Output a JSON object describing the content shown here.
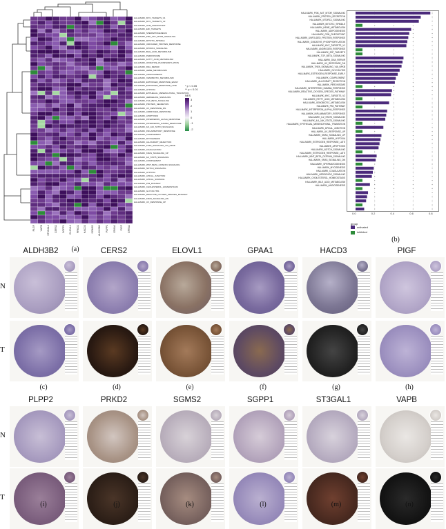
{
  "panel_labels": {
    "a": "(a)",
    "b": "(b)",
    "c": "(c)",
    "d": "(d)",
    "e": "(e)",
    "f": "(f)",
    "g": "(g)",
    "h": "(h)",
    "i": "(i)",
    "j": "(j)",
    "k": "(k)",
    "l": "(l)",
    "m": "(m)",
    "n": "(n)"
  },
  "heatmap": {
    "legend": {
      "p_low": "* p < 0.05",
      "p_high": "** p < 0.01",
      "title": "NES",
      "ticks": [
        "3",
        "2",
        "1",
        "0",
        "-1",
        "-2"
      ]
    },
    "columns": [
      "PLGF",
      "VAPB",
      "ST3GAL1",
      "CERS2",
      "SGPP1",
      "ELOVL1",
      "PRKD2",
      "HACD3",
      "SGMS2",
      "ALDH3B2",
      "PLPP2",
      "GPAA1",
      "PIGF",
      "GFRA1"
    ],
    "rows": [
      "HALLMARK_MYC_TARGETS_V1",
      "HALLMARK_MYC_TARGETS_V2",
      "HALLMARK_G2M_CHECKPOINT",
      "HALLMARK_E2F_TARGETS",
      "HALLMARK_SPERMATOGENESIS",
      "HALLMARK_PI3K_AKT_MTOR_SIGNALING",
      "HALLMARK_MITOTIC_SPINDLE",
      "HALLMARK_UNFOLDED_PROTEIN_RESPONSE",
      "HALLMARK_MTORC1_SIGNALING",
      "HALLMARK_BILE_ACID_METABOLISM",
      "HALLMARK_PEROXISOME",
      "HALLMARK_FATTY_ACID_METABOLISM",
      "HALLMARK_OXIDATIVE_PHOSPHORYLATION",
      "HALLMARK_DNA_REPAIR",
      "HALLMARK_HEME_METABOLISM",
      "HALLMARK_ANGIOGENESIS",
      "HALLMARK_XENOBIOTIC_METABOLISM",
      "HALLMARK_ESTROGEN_RESPONSE_EARLY",
      "HALLMARK_ESTROGEN_RESPONSE_LATE",
      "HALLMARK_HYPOXIA",
      "HALLMARK_EPITHELIAL_MESENCHYMAL_TRANSITION",
      "HALLMARK_HEDGEHOG_SIGNALING",
      "HALLMARK_TGF_BETA_SIGNALING",
      "HALLMARK_PROTEIN_SECRETION",
      "HALLMARK_UV_RESPONSE_DN",
      "HALLMARK_ANDROGEN_RESPONSE",
      "HALLMARK_APOPTOSIS",
      "HALLMARK_INTERFERON_ALPHA_RESPONSE",
      "HALLMARK_INTERFERON_GAMMA_RESPONSE",
      "HALLMARK_IL6_JAK_STAT3_SIGNALING",
      "HALLMARK_INFLAMMATORY_RESPONSE",
      "HALLMARK_COMPLEMENT",
      "HALLMARK_MYOGENESIS",
      "HALLMARK_ALLOGRAFT_REJECTION",
      "HALLMARK_TNFA_SIGNALING_VIA_NFKB",
      "HALLMARK_COAGULATION",
      "HALLMARK_KRAS_SIGNALING_UP",
      "HALLMARK_IL2_STAT5_SIGNALING",
      "HALLMARK_COMPLEMENT",
      "HALLMARK_WNT_BETA_CATENIN_SIGNALING",
      "HALLMARK_NOTCH_SIGNALING",
      "HALLMARK_HYPOXIA",
      "HALLMARK_APICAL_JUNCTION",
      "HALLMARK_APICAL_SURFACE",
      "HALLMARK_P53_PATHWAY",
      "HALLMARK_CHOLESTEROL_HOMEOSTASIS",
      "HALLMARK_GLYCOLYSIS",
      "HALLMARK_REACTIVE_OXYGEN_SPECIES_PATHWAY",
      "HALLMARK_KRAS_SIGNALING_DN",
      "HALLMARK_UV_RESPONSE_UP"
    ]
  },
  "barplot": {
    "axis_ticks": [
      "0.0",
      "0.2",
      "0.4",
      "0.6",
      "0.8"
    ],
    "legend": {
      "title": "group",
      "activated": "activated",
      "inhibited": "inhibited"
    },
    "colors": {
      "activated": "#4b2a7b",
      "inhibited": "#2e8b3a"
    },
    "rows": [
      "HALLMARK_PI3K_AKT_MTOR_SIGNALING",
      "HALLMARK_PROTEIN_SECRETION",
      "HALLMARK_MTORC1_SIGNALING",
      "HALLMARK_MITOTIC_SPINDLE",
      "HALLMARK_HEME_METABOLISM",
      "HALLMARK_ADIPOGENESIS",
      "HALLMARK_G2M_CHECKPOINT",
      "HALLMARK_UNFOLDED_PROTEIN_RESPONSE",
      "HALLMARK_OXIDATIVE_PHOSPHORYLATION",
      "HALLMARK_MYC_TARGETS_V1",
      "HALLMARK_ANDROGEN_RESPONSE",
      "HALLMARK_E2F_TARGETS",
      "HALLMARK_TGF_BETA_SIGNALING",
      "HALLMARK_DNA_REPAIR",
      "HALLMARK_UV_RESPONSE_DN",
      "HALLMARK_TNFA_SIGNALING_VIA_NFKB",
      "HALLMARK_GLYCOLYSIS",
      "HALLMARK_ESTROGEN_RESPONSE_EARLY",
      "HALLMARK_COMPLEMENT",
      "HALLMARK_ALLOGRAFT_REJECTION",
      "HALLMARK_PEROXISOME",
      "HALLMARK_INTERFERON_GAMMA_RESPONSE",
      "HALLMARK_REACTIVE_OXYGEN_SPECIES_PATHWAY",
      "HALLMARK_MYC_TARGETS_V2",
      "HALLMARK_FATTY_ACID_METABOLISM",
      "HALLMARK_XENOBIOTIC_METABOLISM",
      "HALLMARK_P53_PATHWAY",
      "HALLMARK_INTERFERON_ALPHA_RESPONSE",
      "HALLMARK_INFLAMMATORY_RESPONSE",
      "HALLMARK_IL2_STAT5_SIGNALING",
      "HALLMARK_IL6_JAK_STAT3_SIGNALING",
      "HALLMARK_EPITHELIAL_MESENCHYMAL_TRANSITION",
      "HALLMARK_APICAL_JUNCTION",
      "HALLMARK_UV_RESPONSE_UP",
      "HALLMARK_KRAS_SIGNALING_UP",
      "HALLMARK_HYPOXIA",
      "HALLMARK_ESTROGEN_RESPONSE_LATE",
      "HALLMARK_APOPTOSIS",
      "HALLMARK_NOTCH_SIGNALING",
      "HALLMARK_ESTROGEN_RESPONSE_LATE",
      "HALLMARK_WNT_BETA_CATENIN_SIGNALING",
      "HALLMARK_KRAS_SIGNALING_DN",
      "HALLMARK_SPERMATOGENESIS",
      "HALLMARK_MYOGENESIS",
      "HALLMARK_COAGULATION",
      "HALLMARK_HEDGEHOG_SIGNALING",
      "HALLMARK_CHOLESTEROL_HOMEOSTASIS",
      "HALLMARK_BILE_ACID_METABOLISM",
      "HALLMARK_ANGIOGENESIS"
    ],
    "values": [
      0.78,
      0.68,
      0.66,
      0.62,
      0.58,
      0.56,
      0.55,
      0.54,
      0.53,
      0.52,
      0.52,
      0.5,
      0.49,
      0.48,
      0.46,
      0.44,
      0.42,
      0.41,
      0.4,
      0.38,
      0.37,
      0.36,
      0.35,
      0.34,
      0.33,
      0.32,
      0.31,
      0.3,
      0.29,
      0.28,
      0.27,
      0.26,
      0.25,
      0.24,
      0.23,
      0.22,
      0.21,
      0.2,
      0.19,
      0.18,
      0.17,
      0.16,
      0.15,
      0.14,
      0.13,
      0.12,
      0.11,
      0.1,
      0.09
    ]
  },
  "ihc": {
    "row_tags": {
      "normal": "N",
      "tumor": "T"
    },
    "genes": [
      "ALDH3B2",
      "CERS2",
      "ELOVL1",
      "GPAA1",
      "HACD3",
      "PIGF",
      "PLPP2",
      "PRKD2",
      "SGMS2",
      "SGPP1",
      "ST3GAL1",
      "VAPB"
    ]
  }
}
